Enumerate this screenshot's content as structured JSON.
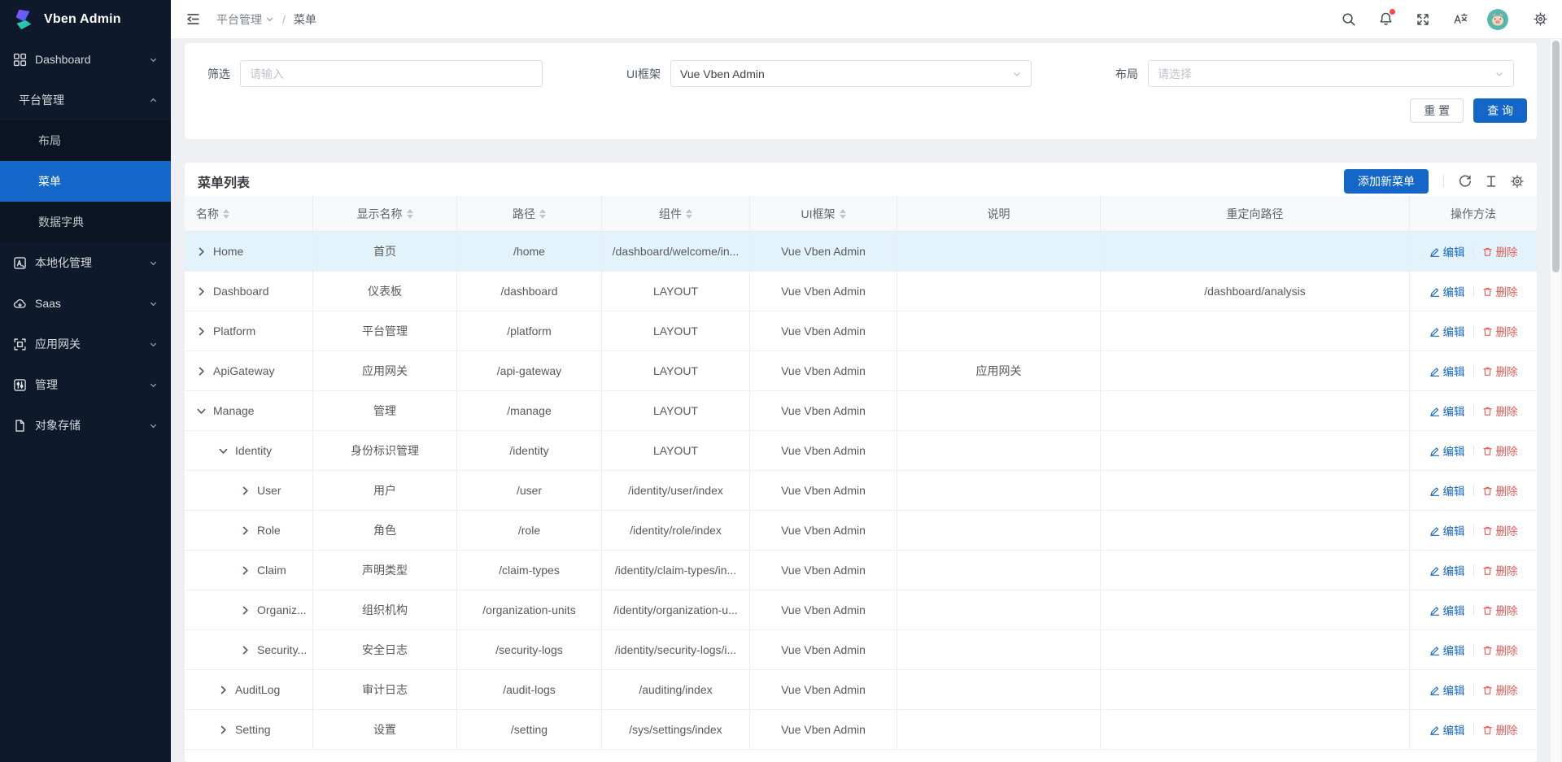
{
  "colors": {
    "primary": "#1467c8",
    "sidebar_bg": "#0e1a2b",
    "submenu_bg": "#0a1422",
    "selected_row_bg": "#e2f3fc",
    "danger": "#f15955"
  },
  "sidebar": {
    "logo_text": "Vben Admin",
    "items": [
      {
        "id": "dashboard",
        "label": "Dashboard",
        "icon": "dashboard-icon",
        "chevron": "down"
      },
      {
        "id": "platform",
        "label": "平台管理",
        "chevron": "up",
        "expanded": true,
        "children": [
          {
            "id": "layout",
            "label": "布局"
          },
          {
            "id": "menu",
            "label": "菜单",
            "active": true
          },
          {
            "id": "data-dictionary",
            "label": "数据字典"
          }
        ]
      },
      {
        "id": "localization",
        "label": "本地化管理",
        "icon": "localization-icon",
        "chevron": "down"
      },
      {
        "id": "saas",
        "label": "Saas",
        "icon": "cloud-icon",
        "chevron": "down"
      },
      {
        "id": "api-gateway",
        "label": "应用网关",
        "icon": "gateway-icon",
        "chevron": "down"
      },
      {
        "id": "manage",
        "label": "管理",
        "icon": "manage-icon",
        "chevron": "down"
      },
      {
        "id": "object-storage",
        "label": "对象存储",
        "icon": "file-icon",
        "chevron": "down"
      }
    ]
  },
  "header": {
    "breadcrumb": {
      "parent": "平台管理",
      "separator": "/",
      "current": "菜单"
    },
    "notification_dot": true,
    "icons": [
      "collapse-sidebar-icon",
      "search-icon",
      "notification-bell-icon",
      "fullscreen-icon",
      "translate-icon",
      "user-avatar",
      "settings-gear-icon"
    ]
  },
  "filter": {
    "fields": [
      {
        "label": "筛选",
        "type": "input",
        "placeholder": "请输入",
        "value": ""
      },
      {
        "label": "UI框架",
        "type": "select",
        "value": "Vue Vben Admin",
        "placeholder": ""
      },
      {
        "label": "布局",
        "type": "select",
        "value": "",
        "placeholder": "请选择"
      }
    ],
    "reset_label": "重 置",
    "search_label": "查 询"
  },
  "table": {
    "title": "菜单列表",
    "add_button_label": "添加新菜单",
    "toolbar_icons": [
      "refresh-icon",
      "row-height-icon",
      "column-settings-icon"
    ],
    "columns": [
      {
        "label": "名称",
        "sortable": true
      },
      {
        "label": "显示名称",
        "sortable": true
      },
      {
        "label": "路径",
        "sortable": true
      },
      {
        "label": "组件",
        "sortable": true
      },
      {
        "label": "UI框架",
        "sortable": true
      },
      {
        "label": "说明",
        "sortable": false
      },
      {
        "label": "重定向路径",
        "sortable": false
      },
      {
        "label": "操作方法",
        "sortable": false
      }
    ],
    "actions": {
      "edit": "编辑",
      "delete": "删除"
    },
    "rows": [
      {
        "level": 0,
        "caret": "right",
        "selected": true,
        "name": "Home",
        "display": "首页",
        "path": "/home",
        "component": "/dashboard/welcome/in...",
        "framework": "Vue Vben Admin",
        "desc": "",
        "redirect": ""
      },
      {
        "level": 0,
        "caret": "right",
        "selected": false,
        "name": "Dashboard",
        "display": "仪表板",
        "path": "/dashboard",
        "component": "LAYOUT",
        "framework": "Vue Vben Admin",
        "desc": "",
        "redirect": "/dashboard/analysis"
      },
      {
        "level": 0,
        "caret": "right",
        "selected": false,
        "name": "Platform",
        "display": "平台管理",
        "path": "/platform",
        "component": "LAYOUT",
        "framework": "Vue Vben Admin",
        "desc": "",
        "redirect": ""
      },
      {
        "level": 0,
        "caret": "right",
        "selected": false,
        "name": "ApiGateway",
        "display": "应用网关",
        "path": "/api-gateway",
        "component": "LAYOUT",
        "framework": "Vue Vben Admin",
        "desc": "应用网关",
        "redirect": ""
      },
      {
        "level": 0,
        "caret": "down",
        "selected": false,
        "name": "Manage",
        "display": "管理",
        "path": "/manage",
        "component": "LAYOUT",
        "framework": "Vue Vben Admin",
        "desc": "",
        "redirect": ""
      },
      {
        "level": 1,
        "caret": "down",
        "selected": false,
        "name": "Identity",
        "display": "身份标识管理",
        "path": "/identity",
        "component": "LAYOUT",
        "framework": "Vue Vben Admin",
        "desc": "",
        "redirect": ""
      },
      {
        "level": 2,
        "caret": "right",
        "selected": false,
        "name": "User",
        "display": "用户",
        "path": "/user",
        "component": "/identity/user/index",
        "framework": "Vue Vben Admin",
        "desc": "",
        "redirect": ""
      },
      {
        "level": 2,
        "caret": "right",
        "selected": false,
        "name": "Role",
        "display": "角色",
        "path": "/role",
        "component": "/identity/role/index",
        "framework": "Vue Vben Admin",
        "desc": "",
        "redirect": ""
      },
      {
        "level": 2,
        "caret": "right",
        "selected": false,
        "name": "Claim",
        "display": "声明类型",
        "path": "/claim-types",
        "component": "/identity/claim-types/in...",
        "framework": "Vue Vben Admin",
        "desc": "",
        "redirect": ""
      },
      {
        "level": 2,
        "caret": "right",
        "selected": false,
        "name": "Organiz...",
        "display": "组织机构",
        "path": "/organization-units",
        "component": "/identity/organization-u...",
        "framework": "Vue Vben Admin",
        "desc": "",
        "redirect": ""
      },
      {
        "level": 2,
        "caret": "right",
        "selected": false,
        "name": "Security...",
        "display": "安全日志",
        "path": "/security-logs",
        "component": "/identity/security-logs/i...",
        "framework": "Vue Vben Admin",
        "desc": "",
        "redirect": ""
      },
      {
        "level": 1,
        "caret": "right",
        "selected": false,
        "name": "AuditLog",
        "display": "审计日志",
        "path": "/audit-logs",
        "component": "/auditing/index",
        "framework": "Vue Vben Admin",
        "desc": "",
        "redirect": ""
      },
      {
        "level": 1,
        "caret": "right",
        "selected": false,
        "name": "Setting",
        "display": "设置",
        "path": "/setting",
        "component": "/sys/settings/index",
        "framework": "Vue Vben Admin",
        "desc": "",
        "redirect": ""
      }
    ]
  }
}
